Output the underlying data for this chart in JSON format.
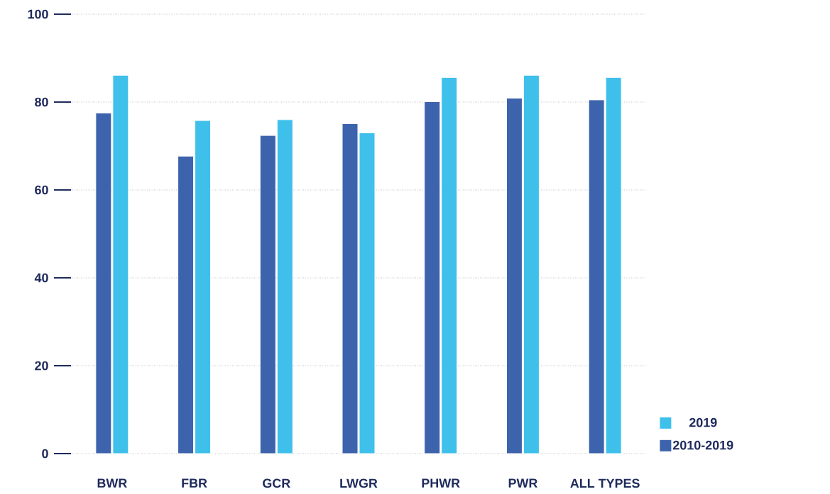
{
  "chart_data": {
    "type": "bar",
    "categories": [
      "BWR",
      "FBR",
      "GCR",
      "LWGR",
      "PHWR",
      "PWR",
      "ALL TYPES"
    ],
    "series": [
      {
        "name": "2010-2019",
        "color": "#3d63ad",
        "values": [
          77.5,
          67.7,
          72.4,
          75.1,
          80.1,
          80.9,
          80.5
        ]
      },
      {
        "name": "2019",
        "color": "#3fc0eb",
        "values": [
          86.1,
          75.8,
          76.0,
          73.0,
          85.6,
          86.1,
          85.6
        ]
      }
    ],
    "ylim": [
      0,
      100
    ],
    "yticks": [
      0,
      20,
      40,
      60,
      80,
      100
    ],
    "grid": "y",
    "legend": "bottom right"
  }
}
